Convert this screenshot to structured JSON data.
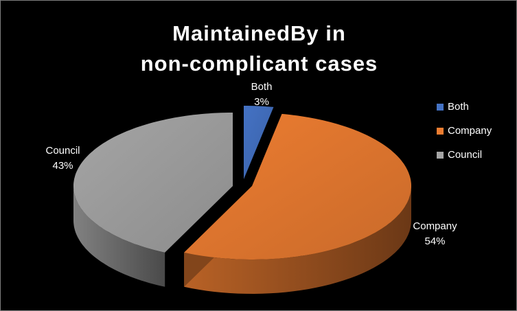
{
  "chart_data": {
    "type": "pie",
    "title_lines": [
      "MaintainedBy in",
      "non-complicant cases"
    ],
    "categories": [
      "Both",
      "Company",
      "Council"
    ],
    "values": [
      3,
      54,
      43
    ],
    "unit": "%",
    "colors": [
      "#4472C4",
      "#ED7D31",
      "#A5A5A5"
    ],
    "style": "3d-exploded",
    "legend_position": "right",
    "data_labels": [
      {
        "category": "Both",
        "value": "3%"
      },
      {
        "category": "Company",
        "value": "54%"
      },
      {
        "category": "Council",
        "value": "43%"
      }
    ]
  }
}
